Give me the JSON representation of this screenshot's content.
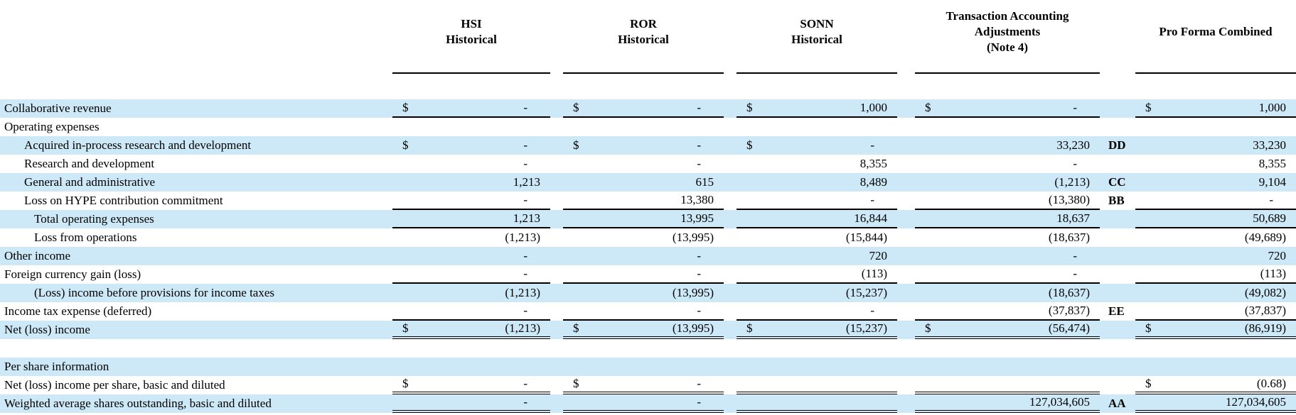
{
  "colors": {
    "row_shade": "#cde8f6",
    "rule_line": "#000000"
  },
  "header": {
    "columns": [
      {
        "id": "hsi",
        "lines": [
          "HSI",
          "Historical"
        ]
      },
      {
        "id": "ror",
        "lines": [
          "ROR",
          "Historical"
        ]
      },
      {
        "id": "sonn",
        "lines": [
          "SONN",
          "Historical"
        ]
      },
      {
        "id": "txn",
        "lines": [
          "Transaction Accounting",
          "Adjustments",
          "(Note 4)"
        ]
      },
      {
        "id": "pf",
        "lines": [
          "Pro Forma Combined"
        ]
      }
    ]
  },
  "rows": [
    {
      "label": "Collaborative revenue",
      "indent": 0,
      "shade": true,
      "cells": {
        "hsi": {
          "d": "$",
          "v": "-",
          "u": "s"
        },
        "ror": {
          "d": "$",
          "v": "-",
          "u": "s"
        },
        "sonn": {
          "d": "$",
          "v": "1,000",
          "u": "s"
        },
        "txn": {
          "d": "$",
          "v": "-",
          "u": "s"
        },
        "pf": {
          "d": "$",
          "v": "1,000",
          "u": "s"
        }
      }
    },
    {
      "label": "Operating expenses",
      "indent": 0,
      "shade": false,
      "cells": {}
    },
    {
      "label": "Acquired in-process research and development",
      "indent": 1,
      "shade": true,
      "note": "DD",
      "cells": {
        "hsi": {
          "d": "$",
          "v": "-"
        },
        "ror": {
          "d": "$",
          "v": "-"
        },
        "sonn": {
          "d": "$",
          "v": "-"
        },
        "txn": {
          "v": "33,230"
        },
        "pf": {
          "v": "33,230"
        }
      }
    },
    {
      "label": "Research and development",
      "indent": 1,
      "shade": false,
      "cells": {
        "hsi": {
          "v": "-"
        },
        "ror": {
          "v": "-"
        },
        "sonn": {
          "v": "8,355"
        },
        "txn": {
          "v": "-"
        },
        "pf": {
          "v": "8,355"
        }
      }
    },
    {
      "label": "General and administrative",
      "indent": 1,
      "shade": true,
      "note": "CC",
      "cells": {
        "hsi": {
          "v": "1,213"
        },
        "ror": {
          "v": "615"
        },
        "sonn": {
          "v": "8,489"
        },
        "txn": {
          "v": "(1,213)"
        },
        "pf": {
          "v": "9,104"
        }
      }
    },
    {
      "label": "Loss on HYPE contribution commitment",
      "indent": 1,
      "shade": false,
      "note": "BB",
      "cells": {
        "hsi": {
          "v": "-",
          "u": "s"
        },
        "ror": {
          "v": "13,380",
          "u": "s"
        },
        "sonn": {
          "v": "-",
          "u": "s"
        },
        "txn": {
          "v": "(13,380)",
          "u": "s"
        },
        "pf": {
          "v": "-",
          "u": "s"
        }
      }
    },
    {
      "label": "Total operating expenses",
      "indent": 2,
      "shade": true,
      "cells": {
        "hsi": {
          "v": "1,213",
          "u": "s"
        },
        "ror": {
          "v": "13,995",
          "u": "s"
        },
        "sonn": {
          "v": "16,844",
          "u": "s"
        },
        "txn": {
          "v": "18,637",
          "u": "s"
        },
        "pf": {
          "v": "50,689",
          "u": "s"
        }
      }
    },
    {
      "label": "Loss from operations",
      "indent": 2,
      "shade": false,
      "cells": {
        "hsi": {
          "v": "(1,213)"
        },
        "ror": {
          "v": "(13,995)"
        },
        "sonn": {
          "v": "(15,844)"
        },
        "txn": {
          "v": "(18,637)"
        },
        "pf": {
          "v": "(49,689)"
        }
      }
    },
    {
      "label": "Other income",
      "indent": 0,
      "shade": true,
      "cells": {
        "hsi": {
          "v": "-"
        },
        "ror": {
          "v": "-"
        },
        "sonn": {
          "v": "720"
        },
        "txn": {
          "v": "-"
        },
        "pf": {
          "v": "720"
        }
      }
    },
    {
      "label": "Foreign currency gain (loss)",
      "indent": 0,
      "shade": false,
      "cells": {
        "hsi": {
          "v": "-",
          "u": "s"
        },
        "ror": {
          "v": "-",
          "u": "s"
        },
        "sonn": {
          "v": "(113)",
          "u": "s"
        },
        "txn": {
          "v": "-",
          "u": "s"
        },
        "pf": {
          "v": "(113)",
          "u": "s"
        }
      }
    },
    {
      "label": "(Loss) income before provisions for income taxes",
      "indent": 2,
      "shade": true,
      "cells": {
        "hsi": {
          "v": "(1,213)"
        },
        "ror": {
          "v": "(13,995)"
        },
        "sonn": {
          "v": "(15,237)"
        },
        "txn": {
          "v": "(18,637)"
        },
        "pf": {
          "v": "(49,082)"
        }
      }
    },
    {
      "label": "Income tax expense (deferred)",
      "indent": 0,
      "shade": false,
      "note": "EE",
      "cells": {
        "hsi": {
          "v": "-",
          "u": "s"
        },
        "ror": {
          "v": "-",
          "u": "s"
        },
        "sonn": {
          "v": "-",
          "u": "s"
        },
        "txn": {
          "v": "(37,837)",
          "u": "s"
        },
        "pf": {
          "v": "(37,837)",
          "u": "s"
        }
      }
    },
    {
      "label": "Net (loss) income",
      "indent": 0,
      "shade": true,
      "cells": {
        "hsi": {
          "d": "$",
          "v": "(1,213)",
          "u": "d"
        },
        "ror": {
          "d": "$",
          "v": "(13,995)",
          "u": "d"
        },
        "sonn": {
          "d": "$",
          "v": "(15,237)",
          "u": "d"
        },
        "txn": {
          "d": "$",
          "v": "(56,474)",
          "u": "d"
        },
        "pf": {
          "d": "$",
          "v": "(86,919)",
          "u": "d"
        }
      }
    },
    {
      "label": "",
      "indent": 0,
      "shade": false,
      "cells": {}
    },
    {
      "label": "Per share information",
      "indent": 0,
      "shade": true,
      "cells": {}
    },
    {
      "label": "Net (loss) income per share, basic and diluted",
      "indent": 0,
      "shade": false,
      "cells": {
        "hsi": {
          "d": "$",
          "v": "-",
          "u": "d"
        },
        "ror": {
          "d": "$",
          "v": "-",
          "u": "d"
        },
        "sonn": {
          "v": "",
          "u": "d"
        },
        "txn": {
          "v": "",
          "u": "d"
        },
        "pf": {
          "d": "$",
          "v": "(0.68)",
          "u": "d"
        }
      }
    },
    {
      "label": "Weighted average shares outstanding, basic and diluted",
      "indent": 0,
      "shade": true,
      "note": "AA",
      "cells": {
        "hsi": {
          "v": "-",
          "u": "d"
        },
        "ror": {
          "v": "-",
          "u": "d"
        },
        "sonn": {
          "v": "",
          "u": "d"
        },
        "txn": {
          "v": "127,034,605",
          "u": "d"
        },
        "pf": {
          "v": "127,034,605",
          "u": "d"
        }
      }
    }
  ]
}
